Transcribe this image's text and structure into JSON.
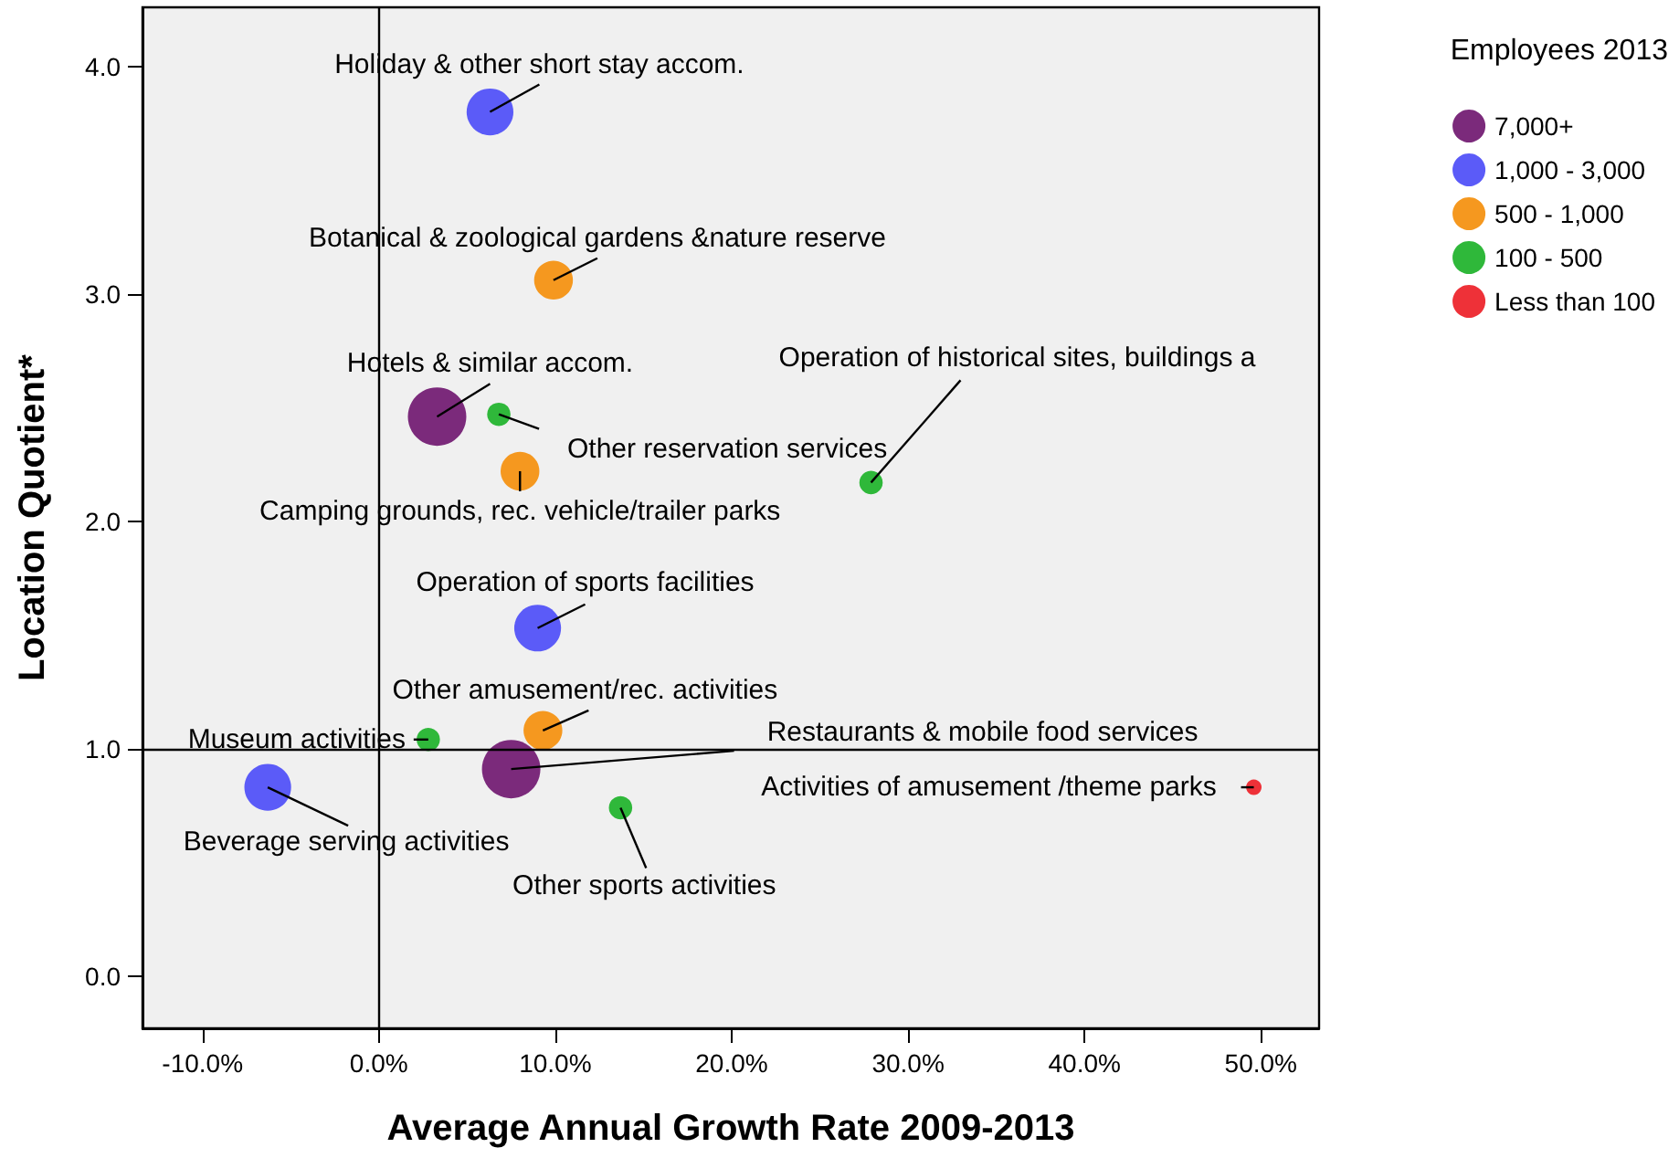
{
  "chart_data": {
    "type": "bubble",
    "xlabel": "Average Annual Growth Rate 2009-2013",
    "ylabel": "Location Quotient*",
    "legend_title": "Employees 2013",
    "legend": "top right",
    "grid": false,
    "xlim": [
      -13.4,
      53.3
    ],
    "ylim": [
      -0.23,
      4.26
    ],
    "xticks": [
      {
        "value": -10,
        "label": "-10.0%"
      },
      {
        "value": 0,
        "label": "0.0%"
      },
      {
        "value": 10,
        "label": "10.0%"
      },
      {
        "value": 20,
        "label": "20.0%"
      },
      {
        "value": 30,
        "label": "30.0%"
      },
      {
        "value": 40,
        "label": "40.0%"
      },
      {
        "value": 50,
        "label": "50.0%"
      }
    ],
    "yticks": [
      {
        "value": 0,
        "label": "0.0"
      },
      {
        "value": 1,
        "label": "1.0"
      },
      {
        "value": 2,
        "label": "2.0"
      },
      {
        "value": 3,
        "label": "3.0"
      },
      {
        "value": 4,
        "label": "4.0"
      }
    ],
    "series": [
      {
        "name": "7,000+",
        "color": "#7b2a7b",
        "x": [
          3.3,
          7.5
        ],
        "values": [
          2.46,
          0.91
        ],
        "sizes": [
          1,
          1
        ]
      },
      {
        "name": "1,000 - 3,000",
        "color": "#5b5bf8",
        "x": [
          6.3,
          9.0,
          -6.3
        ],
        "values": [
          3.8,
          1.53,
          0.83
        ],
        "sizes": [
          0.64,
          0.64,
          0.64
        ]
      },
      {
        "name": "500 - 1,000",
        "color": "#f5981f",
        "x": [
          9.9,
          8.0,
          9.3
        ],
        "values": [
          3.06,
          2.22,
          1.08
        ],
        "sizes": [
          0.44,
          0.44,
          0.44
        ]
      },
      {
        "name": "100 - 500",
        "color": "#2fb83a",
        "x": [
          6.8,
          27.9,
          2.8,
          13.7
        ],
        "values": [
          2.47,
          2.17,
          1.04,
          0.74
        ],
        "sizes": [
          0.16,
          0.16,
          0.16,
          0.16
        ]
      },
      {
        "name": "Less than 100",
        "color": "#ee3138",
        "x": [
          49.6
        ],
        "values": [
          0.83
        ],
        "sizes": [
          0.07
        ]
      }
    ],
    "ref_lines": [
      {
        "axis": "x",
        "value": 0,
        "color": "#000000"
      },
      {
        "axis": "y",
        "value": 1,
        "color": "#000000"
      }
    ],
    "annotations": [
      {
        "text": "Holiday & other short stay accom.",
        "x": 6.3,
        "y": 3.8
      },
      {
        "text": "Botanical & zoological gardens &nature reserve",
        "x": 9.9,
        "y": 3.06
      },
      {
        "text": "Hotels & similar accom.",
        "x": 3.3,
        "y": 2.46
      },
      {
        "text": "Other reservation services",
        "x": 6.8,
        "y": 2.47
      },
      {
        "text": "Camping grounds, rec. vehicle/trailer parks",
        "x": 8.0,
        "y": 2.22
      },
      {
        "text": "Operation of historical sites, buildings a",
        "x": 27.9,
        "y": 2.17
      },
      {
        "text": "Operation of sports facilities",
        "x": 9.0,
        "y": 1.53
      },
      {
        "text": "Other amusement/rec. activities",
        "x": 9.3,
        "y": 1.08
      },
      {
        "text": "Museum activities",
        "x": 2.8,
        "y": 1.04
      },
      {
        "text": "Restaurants & mobile food services",
        "x": 7.5,
        "y": 0.91
      },
      {
        "text": "Beverage serving activities",
        "x": -6.3,
        "y": 0.83
      },
      {
        "text": "Other sports activities",
        "x": 13.7,
        "y": 0.74
      },
      {
        "text": "Activities of amusement /theme parks",
        "x": 49.6,
        "y": 0.83
      }
    ]
  }
}
